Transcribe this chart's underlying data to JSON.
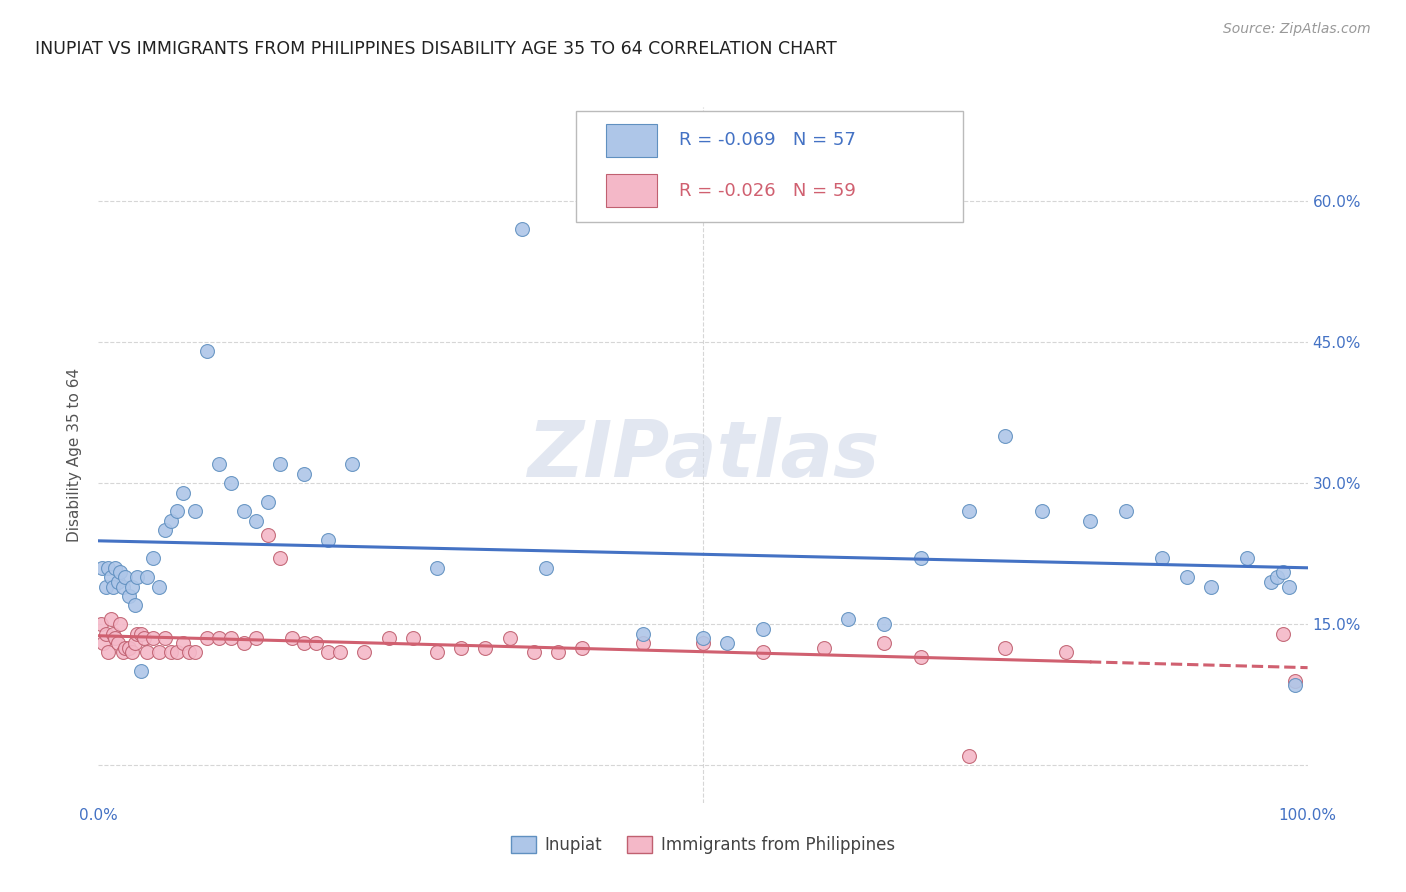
{
  "title": "INUPIAT VS IMMIGRANTS FROM PHILIPPINES DISABILITY AGE 35 TO 64 CORRELATION CHART",
  "source": "Source: ZipAtlas.com",
  "ylabel": "Disability Age 35 to 64",
  "xlim": [
    0,
    1.0
  ],
  "ylim": [
    -0.04,
    0.7
  ],
  "xticks": [
    0.0,
    0.2,
    0.4,
    0.5,
    0.6,
    0.8,
    1.0
  ],
  "xticklabels": [
    "0.0%",
    "",
    "",
    "",
    "",
    "",
    "100.0%"
  ],
  "yticks": [
    0.0,
    0.15,
    0.3,
    0.45,
    0.6
  ],
  "yticklabels": [
    "",
    "15.0%",
    "30.0%",
    "45.0%",
    "60.0%"
  ],
  "legend_labels": [
    "Inupiat",
    "Immigrants from Philippines"
  ],
  "blue_r": -0.069,
  "blue_n": 57,
  "pink_r": -0.026,
  "pink_n": 59,
  "blue_color": "#aec6e8",
  "pink_color": "#f4b8c8",
  "blue_line_color": "#4472c4",
  "pink_line_color": "#d06070",
  "blue_edge_color": "#6090c0",
  "pink_edge_color": "#c06070",
  "background_color": "#ffffff",
  "grid_color": "#cccccc",
  "title_color": "#222222",
  "axis_label_color": "#4472c4",
  "watermark": "ZIPatlas",
  "inupiat_x": [
    0.003,
    0.006,
    0.008,
    0.01,
    0.012,
    0.014,
    0.016,
    0.018,
    0.02,
    0.022,
    0.025,
    0.028,
    0.03,
    0.032,
    0.035,
    0.04,
    0.045,
    0.05,
    0.055,
    0.06,
    0.065,
    0.07,
    0.08,
    0.09,
    0.1,
    0.11,
    0.12,
    0.13,
    0.14,
    0.15,
    0.17,
    0.19,
    0.21,
    0.28,
    0.35,
    0.37,
    0.45,
    0.5,
    0.52,
    0.55,
    0.62,
    0.65,
    0.68,
    0.72,
    0.75,
    0.78,
    0.82,
    0.85,
    0.88,
    0.9,
    0.92,
    0.95,
    0.97,
    0.975,
    0.98,
    0.985,
    0.99
  ],
  "inupiat_y": [
    0.21,
    0.19,
    0.21,
    0.2,
    0.19,
    0.21,
    0.195,
    0.205,
    0.19,
    0.2,
    0.18,
    0.19,
    0.17,
    0.2,
    0.1,
    0.2,
    0.22,
    0.19,
    0.25,
    0.26,
    0.27,
    0.29,
    0.27,
    0.44,
    0.32,
    0.3,
    0.27,
    0.26,
    0.28,
    0.32,
    0.31,
    0.24,
    0.32,
    0.21,
    0.57,
    0.21,
    0.14,
    0.135,
    0.13,
    0.145,
    0.155,
    0.15,
    0.22,
    0.27,
    0.35,
    0.27,
    0.26,
    0.27,
    0.22,
    0.2,
    0.19,
    0.22,
    0.195,
    0.2,
    0.205,
    0.19,
    0.085
  ],
  "phil_x": [
    0.002,
    0.004,
    0.006,
    0.008,
    0.01,
    0.012,
    0.014,
    0.016,
    0.018,
    0.02,
    0.022,
    0.025,
    0.028,
    0.03,
    0.032,
    0.035,
    0.038,
    0.04,
    0.045,
    0.05,
    0.055,
    0.06,
    0.065,
    0.07,
    0.075,
    0.08,
    0.09,
    0.1,
    0.11,
    0.12,
    0.13,
    0.14,
    0.15,
    0.16,
    0.17,
    0.18,
    0.19,
    0.2,
    0.22,
    0.24,
    0.26,
    0.28,
    0.3,
    0.32,
    0.34,
    0.36,
    0.38,
    0.4,
    0.45,
    0.5,
    0.55,
    0.6,
    0.65,
    0.68,
    0.72,
    0.75,
    0.8,
    0.98,
    0.99
  ],
  "phil_y": [
    0.15,
    0.13,
    0.14,
    0.12,
    0.155,
    0.14,
    0.135,
    0.13,
    0.15,
    0.12,
    0.125,
    0.125,
    0.12,
    0.13,
    0.14,
    0.14,
    0.135,
    0.12,
    0.135,
    0.12,
    0.135,
    0.12,
    0.12,
    0.13,
    0.12,
    0.12,
    0.135,
    0.135,
    0.135,
    0.13,
    0.135,
    0.245,
    0.22,
    0.135,
    0.13,
    0.13,
    0.12,
    0.12,
    0.12,
    0.135,
    0.135,
    0.12,
    0.125,
    0.125,
    0.135,
    0.12,
    0.12,
    0.125,
    0.13,
    0.13,
    0.12,
    0.125,
    0.13,
    0.115,
    0.01,
    0.125,
    0.12,
    0.14,
    0.09
  ]
}
